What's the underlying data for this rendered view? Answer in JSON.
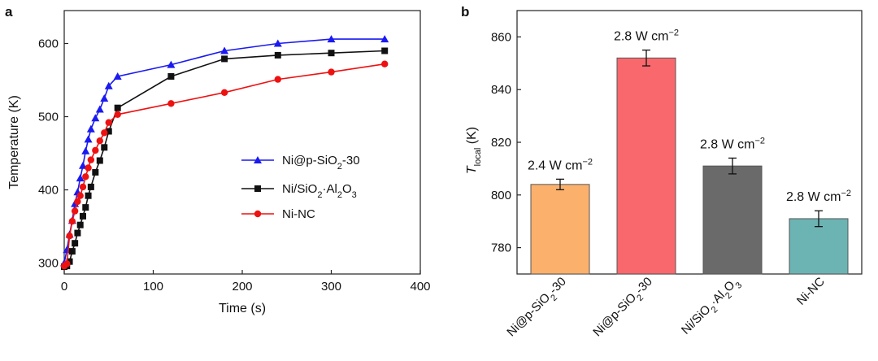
{
  "panels": {
    "a": "a",
    "b": "b"
  },
  "chart_data": [
    {
      "type": "line",
      "panel": "a",
      "title": "",
      "xlabel": "Time (s)",
      "ylabel": "Temperature (K)",
      "xlim": [
        0,
        400
      ],
      "ylim": [
        285,
        645
      ],
      "xticks": [
        0,
        100,
        200,
        300,
        400
      ],
      "yticks": [
        300,
        400,
        500,
        600
      ],
      "legend_position": "center-right",
      "series": [
        {
          "name": "Ni@p-SiO2-30",
          "legend_parts": [
            "Ni@p-SiO",
            "2",
            "-30"
          ],
          "color": "#1a1af0",
          "marker": "triangle",
          "x": [
            0,
            3,
            6,
            9,
            12,
            15,
            18,
            21,
            24,
            27,
            30,
            35,
            40,
            45,
            50,
            60,
            120,
            180,
            240,
            300,
            360
          ],
          "y": [
            300,
            318,
            339,
            358,
            381,
            397,
            416,
            433,
            453,
            469,
            483,
            498,
            510,
            525,
            542,
            555,
            571,
            590,
            600,
            606,
            606
          ]
        },
        {
          "name": "Ni/SiO2·Al2O3",
          "legend_parts": [
            "Ni/SiO",
            "2",
            "·Al",
            "2",
            "O",
            "3"
          ],
          "color": "#111111",
          "marker": "square",
          "x": [
            0,
            3,
            6,
            9,
            12,
            15,
            18,
            21,
            24,
            27,
            30,
            35,
            40,
            45,
            50,
            60,
            120,
            180,
            240,
            300,
            360
          ],
          "y": [
            295,
            296,
            302,
            316,
            327,
            341,
            352,
            364,
            376,
            392,
            404,
            424,
            440,
            458,
            480,
            512,
            555,
            579,
            584,
            587,
            590
          ]
        },
        {
          "name": "Ni-NC",
          "legend_parts": [
            "Ni-NC"
          ],
          "color": "#ee1111",
          "marker": "circle",
          "x": [
            0,
            3,
            6,
            9,
            12,
            15,
            18,
            21,
            24,
            27,
            30,
            35,
            40,
            45,
            50,
            60,
            120,
            180,
            240,
            300,
            360
          ],
          "y": [
            296,
            299,
            337,
            357,
            371,
            384,
            392,
            404,
            418,
            430,
            441,
            454,
            467,
            478,
            492,
            503,
            518,
            533,
            551,
            561,
            572
          ]
        }
      ]
    },
    {
      "type": "bar",
      "panel": "b",
      "title": "",
      "xlabel": "",
      "ylabel": "T_local (K)",
      "ylabel_parts": [
        "T",
        "local",
        " (K)"
      ],
      "ylim": [
        770,
        870
      ],
      "yticks": [
        780,
        800,
        820,
        840,
        860
      ],
      "categories": [
        "Ni@p-SiO2-30",
        "Ni@p-SiO2-30",
        "Ni/SiO2·Al2O3",
        "Ni-NC"
      ],
      "category_parts": [
        [
          "Ni@p-SiO",
          "2",
          "-30"
        ],
        [
          "Ni@p-SiO",
          "2",
          "-30"
        ],
        [
          "Ni/SiO",
          "2",
          "·Al",
          "2",
          "O",
          "3"
        ],
        [
          "Ni-NC"
        ]
      ],
      "values": [
        804,
        852,
        811,
        791
      ],
      "errors": [
        2,
        3,
        3,
        3
      ],
      "colors": [
        "#fbb06c",
        "#f9686c",
        "#6a6a6a",
        "#6cb4b3"
      ],
      "data_labels": [
        "2.4 W cm",
        "2.8 W cm",
        "2.8 W cm",
        "2.8 W cm"
      ],
      "data_label_superscript": "−2"
    }
  ]
}
